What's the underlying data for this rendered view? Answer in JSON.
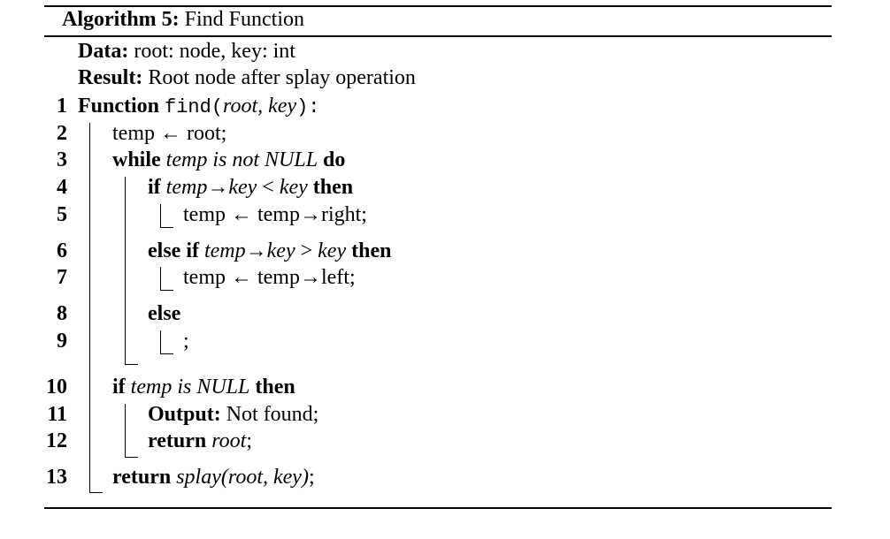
{
  "algorithm": {
    "label": "Algorithm 5:",
    "title": "Find Function",
    "data_label": "Data:",
    "data_text": "root: node, key: int",
    "result_label": "Result:",
    "result_text": "Root node after splay operation"
  },
  "lines": {
    "n1": "1",
    "n2": "2",
    "n3": "3",
    "n4": "4",
    "n5": "5",
    "n6": "6",
    "n7": "7",
    "n8": "8",
    "n9": "9",
    "n10": "10",
    "n11": "11",
    "n12": "12",
    "n13": "13"
  },
  "code": {
    "l1_kw": "Function",
    "l1_name": "find",
    "l1_paren_open": "(",
    "l1_args": "root, key",
    "l1_paren_close": "):",
    "l2": "temp ← root;",
    "l3_kw": "while",
    "l3_cond": "temp is not NULL",
    "l3_do": "do",
    "l4_kw": "if",
    "l4_cond_a": "temp→key",
    "l4_op": "<",
    "l4_cond_b": "key",
    "l4_then": "then",
    "l5": "temp ← temp→right;",
    "l6_kw": "else if",
    "l6_cond_a": "temp→key",
    "l6_op": ">",
    "l6_cond_b": "key",
    "l6_then": "then",
    "l7": "temp ← temp→left;",
    "l8_kw": "else",
    "l9": ";",
    "l10_kw": "if",
    "l10_cond": "temp is NULL",
    "l10_then": "then",
    "l11_kw": "Output:",
    "l11_text": "Not found;",
    "l12_kw": "return",
    "l12_val": "root",
    "l12_semi": ";",
    "l13_kw": "return",
    "l13_val": "splay(root, key)",
    "l13_semi": ";"
  }
}
